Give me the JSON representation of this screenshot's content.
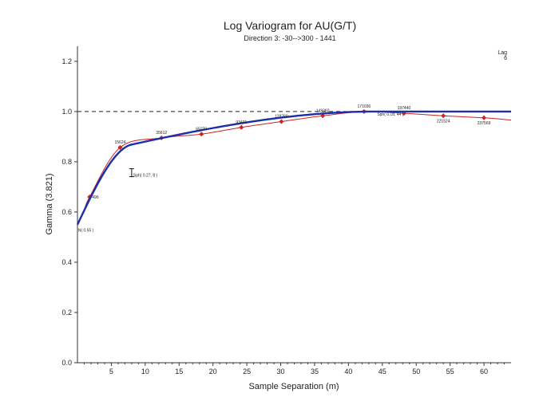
{
  "chart_data": {
    "type": "line",
    "title": "Log  Variogram for AU(G/T)",
    "subtitle": "Direction 3: -30-->300 - 1441",
    "xlabel": "Sample Separation (m)",
    "ylabel": "Gamma (3.821)",
    "xlim": [
      0,
      64
    ],
    "ylim": [
      0,
      1.26
    ],
    "xticks": [
      "5",
      "10",
      "15",
      "20",
      "25",
      "30",
      "35",
      "40",
      "45",
      "50",
      "55",
      "60"
    ],
    "yticks": [
      "0.0",
      "0.2",
      "0.4",
      "0.6",
      "0.8",
      "1.0",
      "1.2"
    ],
    "sill": 1.0,
    "legend": {
      "lines": [
        "Lag",
        "6"
      ],
      "position": "top-right"
    },
    "experimental": {
      "color": "#cc2222",
      "points": [
        {
          "x": 1.8,
          "y": 0.66,
          "pairs": "496"
        },
        {
          "x": 6.3,
          "y": 0.857,
          "pairs": "15624"
        },
        {
          "x": 12.4,
          "y": 0.895,
          "pairs": "35612"
        },
        {
          "x": 18.3,
          "y": 0.91,
          "pairs": "65270"
        },
        {
          "x": 24.2,
          "y": 0.937,
          "pairs": "93401"
        },
        {
          "x": 30.1,
          "y": 0.96,
          "pairs": "128760"
        },
        {
          "x": 36.2,
          "y": 0.983,
          "pairs": "149360"
        },
        {
          "x": 42.3,
          "y": 1.0,
          "pairs": "171036"
        },
        {
          "x": 48.2,
          "y": 0.993,
          "pairs": "197440"
        },
        {
          "x": 54.0,
          "y": 0.983,
          "pairs": "221524"
        },
        {
          "x": 60.0,
          "y": 0.975,
          "pairs": "237569"
        }
      ]
    },
    "model": {
      "color": "#1a2fa8",
      "nugget": 0.55,
      "structures": [
        {
          "type": "Sph",
          "sill": 0.27,
          "range": 8
        },
        {
          "type": "Sph",
          "sill": 0.18,
          "range": 44
        }
      ],
      "labels": [
        "N( 0.55 )",
        "Sph( 0.27, 8 )",
        "Sph( 0.18, 44 )"
      ]
    }
  }
}
